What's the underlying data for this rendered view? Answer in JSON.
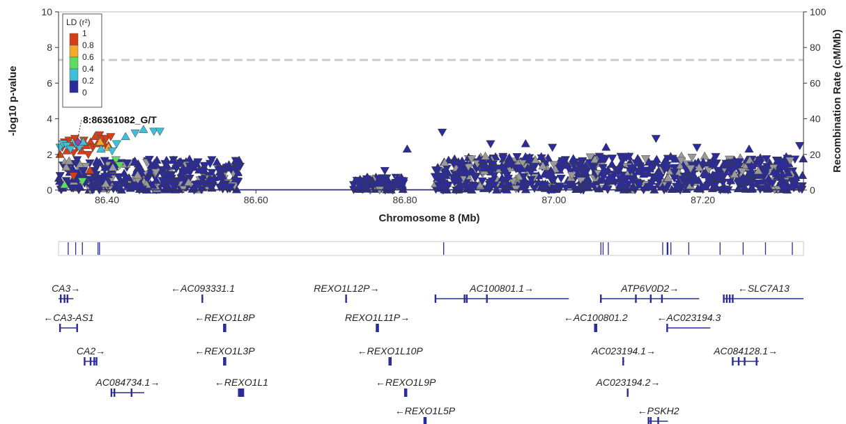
{
  "chart_data": {
    "type": "scatter",
    "xlabel": "Chromosome 8 (Mb)",
    "ylabel": "-log10 p-value",
    "y2label": "Recombination Rate (cM/Mb)",
    "xlim": [
      86.335,
      87.335
    ],
    "ylim": [
      0,
      10
    ],
    "y2lim": [
      0,
      100
    ],
    "xticks": [
      "86.40",
      "86.60",
      "86.80",
      "87.00",
      "87.20"
    ],
    "xtick_values": [
      86.4,
      86.6,
      86.8,
      87.0,
      87.2
    ],
    "yticks": [
      "0",
      "2",
      "4",
      "6",
      "8",
      "10"
    ],
    "y2ticks": [
      "0",
      "20",
      "40",
      "60",
      "80",
      "100"
    ],
    "significance_line": 7.3,
    "grid": false,
    "lead_snp": {
      "label": "8:86361082_G/T",
      "x": 86.361,
      "y": 2.7
    },
    "legend": {
      "title": "LD (r²)",
      "position": "top-left",
      "labels": [
        "1",
        "0.8",
        "0.6",
        "0.4",
        "0.2",
        "0"
      ],
      "colors": [
        "#d43f1a",
        "#f4a92a",
        "#5fdc5f",
        "#3fbfd8",
        "#2b2b9a"
      ]
    },
    "colors": {
      "na": "#9a9a9a",
      "lead": "#9b3fb0",
      "recomb": "#2b2b9a",
      "sigline": "#cccccc"
    },
    "regions": [
      {
        "x0": 86.335,
        "x1": 86.58,
        "ymax": 1.75
      },
      {
        "x0": 86.73,
        "x1": 86.8,
        "ymax": 0.75
      },
      {
        "x0": 86.84,
        "x1": 87.335,
        "ymax": 1.9
      }
    ],
    "series": [
      {
        "name": "high-LD",
        "points": [
          [
            86.337,
            2.0
          ],
          [
            86.34,
            2.4
          ],
          [
            86.343,
            2.7
          ],
          [
            86.346,
            2.2
          ],
          [
            86.349,
            2.8
          ],
          [
            86.352,
            2.5
          ],
          [
            86.355,
            2.1
          ],
          [
            86.357,
            2.9
          ],
          [
            86.36,
            2.4
          ],
          [
            86.364,
            2.6
          ],
          [
            86.366,
            2.2
          ],
          [
            86.369,
            2.8
          ],
          [
            86.372,
            2.5
          ],
          [
            86.375,
            2.0
          ],
          [
            86.378,
            2.7
          ],
          [
            86.381,
            2.4
          ],
          [
            86.384,
            3.0
          ],
          [
            86.387,
            2.6
          ],
          [
            86.39,
            3.1
          ],
          [
            86.393,
            2.9
          ],
          [
            86.396,
            2.6
          ],
          [
            86.399,
            2.9
          ],
          [
            86.402,
            2.5
          ],
          [
            86.405,
            3.0
          ],
          [
            86.377,
            1.1
          ],
          [
            86.355,
            0.8
          ]
        ]
      },
      {
        "name": "mod-LD",
        "points": [
          [
            86.402,
            2.4
          ],
          [
            86.391,
            2.7
          ]
        ]
      },
      {
        "name": "low-LD",
        "points": [
          [
            86.412,
            1.7
          ],
          [
            86.417,
            1.4
          ],
          [
            86.343,
            0.3
          ],
          [
            86.367,
            0.5
          ]
        ]
      },
      {
        "name": "vlow-LD",
        "points": [
          [
            86.337,
            2.4
          ],
          [
            86.341,
            2.6
          ],
          [
            86.346,
            2.5
          ],
          [
            86.351,
            2.3
          ],
          [
            86.358,
            2.6
          ],
          [
            86.363,
            2.4
          ],
          [
            86.368,
            2.7
          ],
          [
            86.407,
            2.2
          ],
          [
            86.413,
            2.6
          ],
          [
            86.425,
            3.0
          ],
          [
            86.438,
            3.2
          ],
          [
            86.449,
            3.4
          ],
          [
            86.463,
            3.3
          ],
          [
            86.471,
            3.3
          ],
          [
            86.392,
            2.3
          ]
        ]
      },
      {
        "name": "none-LD",
        "dense": true
      },
      {
        "name": "na-LD",
        "dense": true
      }
    ],
    "peaks": [
      [
        86.85,
        3.25
      ],
      [
        86.915,
        2.6
      ],
      [
        86.962,
        2.6
      ],
      [
        86.998,
        2.4
      ],
      [
        87.07,
        2.4
      ],
      [
        87.137,
        2.9
      ],
      [
        87.192,
        2.4
      ],
      [
        87.262,
        2.3
      ],
      [
        87.33,
        2.5
      ],
      [
        86.803,
        2.3
      ],
      [
        86.773,
        1.1
      ],
      [
        86.79,
        0.65
      ]
    ]
  },
  "genes": [
    {
      "name": "CA3",
      "dir": "right",
      "x0": 86.335,
      "x1": 86.355,
      "row": 0,
      "exons": [
        86.338,
        86.343,
        86.347
      ]
    },
    {
      "name": "AC093331.1",
      "dir": "left",
      "x0": 86.528,
      "x1": 86.529,
      "row": 0,
      "exons": [
        86.528
      ]
    },
    {
      "name": "REXO1L12P",
      "dir": "right",
      "x0": 86.721,
      "x1": 86.722,
      "row": 0,
      "exons": [
        86.721
      ]
    },
    {
      "name": "AC100801.1",
      "dir": "right",
      "x0": 86.84,
      "x1": 87.02,
      "row": 0,
      "exons": [
        86.841,
        86.88,
        86.883,
        86.91
      ]
    },
    {
      "name": "ATP6V0D2",
      "dir": "right",
      "x0": 87.063,
      "x1": 87.195,
      "row": 0,
      "exons": [
        87.063,
        87.11,
        87.13,
        87.145
      ]
    },
    {
      "name": "SLC7A13",
      "dir": "left",
      "x0": 87.228,
      "x1": 87.335,
      "row": 0,
      "exons": [
        87.228,
        87.232,
        87.236,
        87.24
      ]
    },
    {
      "name": "CA3-AS1",
      "dir": "left",
      "x0": 86.337,
      "x1": 86.36,
      "row": 1,
      "exons": [
        86.337,
        86.36
      ]
    },
    {
      "name": "REXO1L8P",
      "dir": "left",
      "x0": 86.557,
      "x1": 86.559,
      "row": 1,
      "exons": [
        86.557,
        86.559
      ]
    },
    {
      "name": "REXO1L11P",
      "dir": "right",
      "x0": 86.762,
      "x1": 86.764,
      "row": 1,
      "exons": [
        86.762,
        86.764
      ]
    },
    {
      "name": "AC100801.2",
      "dir": "left",
      "x0": 87.055,
      "x1": 87.057,
      "row": 1,
      "exons": [
        87.055,
        87.057
      ]
    },
    {
      "name": "AC023194.3",
      "dir": "left",
      "x0": 87.152,
      "x1": 87.21,
      "row": 1,
      "exons": [
        87.152
      ]
    },
    {
      "name": "CA2",
      "dir": "right",
      "x0": 86.37,
      "x1": 86.387,
      "row": 2,
      "exons": [
        86.37,
        86.378,
        86.383,
        86.386
      ]
    },
    {
      "name": "REXO1L3P",
      "dir": "left",
      "x0": 86.557,
      "x1": 86.559,
      "row": 2,
      "exons": [
        86.557,
        86.559
      ]
    },
    {
      "name": "REXO1L10P",
      "dir": "left",
      "x0": 86.779,
      "x1": 86.781,
      "row": 2,
      "exons": [
        86.779,
        86.781
      ]
    },
    {
      "name": "AC023194.1",
      "dir": "right",
      "x0": 87.093,
      "x1": 87.094,
      "row": 2,
      "exons": [
        87.093
      ]
    },
    {
      "name": "AC084128.1",
      "dir": "right",
      "x0": 87.24,
      "x1": 87.275,
      "row": 2,
      "exons": [
        87.24,
        87.248,
        87.256,
        87.272
      ]
    },
    {
      "name": "AC084734.1",
      "dir": "right",
      "x0": 86.406,
      "x1": 86.45,
      "row": 3,
      "exons": [
        86.406,
        86.41,
        86.433
      ]
    },
    {
      "name": "REXO1L1",
      "dir": "left",
      "x0": 86.577,
      "x1": 86.584,
      "row": 3,
      "exons": [
        86.577,
        86.579,
        86.581,
        86.583
      ]
    },
    {
      "name": "REXO1L9P",
      "dir": "left",
      "x0": 86.8,
      "x1": 86.802,
      "row": 3,
      "exons": [
        86.8,
        86.802
      ]
    },
    {
      "name": "AC023194.2",
      "dir": "right",
      "x0": 87.099,
      "x1": 87.1,
      "row": 3,
      "exons": [
        87.099
      ]
    },
    {
      "name": "REXO1L5P",
      "dir": "left",
      "x0": 86.826,
      "x1": 86.828,
      "row": 4,
      "exons": [
        86.826,
        86.828
      ]
    },
    {
      "name": "PSKH2",
      "dir": "left",
      "x0": 87.127,
      "x1": 87.153,
      "row": 4,
      "exons": [
        87.127,
        87.13,
        87.14
      ]
    }
  ],
  "density_ticks": [
    86.348,
    86.358,
    86.367,
    86.388,
    86.39,
    86.852,
    87.063,
    87.066,
    87.073,
    87.146,
    87.152,
    87.153,
    87.157,
    87.181,
    87.223,
    87.254,
    87.284,
    87.32
  ]
}
